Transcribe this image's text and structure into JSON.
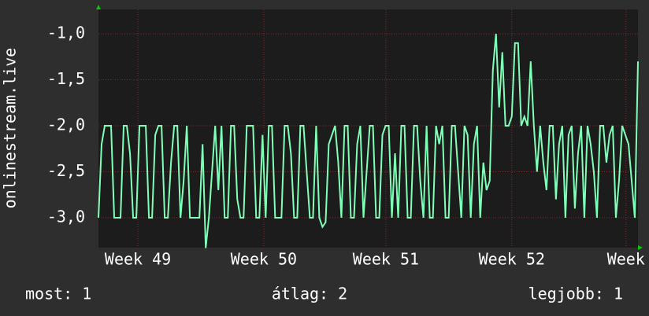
{
  "chart_data": {
    "type": "line",
    "ylabel": "onlinestream.live",
    "ylim": [
      -3.325,
      -0.735
    ],
    "yticks": [
      {
        "value": -1.0,
        "label": "-1,0"
      },
      {
        "value": -1.5,
        "label": "-1,5"
      },
      {
        "value": -2.0,
        "label": "-2,0"
      },
      {
        "value": -2.5,
        "label": "-2,5"
      },
      {
        "value": -3.0,
        "label": "-3,0"
      }
    ],
    "xlim": [
      0,
      171
    ],
    "xticks": [
      {
        "value": 12.5,
        "label": "Week 49"
      },
      {
        "value": 52.4,
        "label": "Week 50"
      },
      {
        "value": 91.1,
        "label": "Week 51"
      },
      {
        "value": 131,
        "label": "Week 52"
      },
      {
        "value": 167.2,
        "label": "Week"
      }
    ],
    "grid": true,
    "series": [
      {
        "color": "#80ffb8",
        "values": [
          -3,
          -2.2,
          -2,
          -2,
          -2,
          -3,
          -3,
          -3,
          -2,
          -2,
          -2.3,
          -3,
          -3,
          -2,
          -2,
          -2,
          -3,
          -3,
          -2.1,
          -2,
          -2,
          -3,
          -3,
          -2.4,
          -2,
          -2,
          -3,
          -2.6,
          -2,
          -3,
          -3,
          -3,
          -3,
          -2.2,
          -3.33,
          -3,
          -2.5,
          -2,
          -2.7,
          -2,
          -3,
          -3,
          -2,
          -2,
          -2.8,
          -3,
          -3,
          -2,
          -2,
          -2,
          -3,
          -3,
          -2.1,
          -3,
          -2,
          -2,
          -3,
          -3,
          -3,
          -2,
          -2,
          -2.3,
          -3,
          -3,
          -2,
          -2,
          -2.5,
          -3,
          -3,
          -2,
          -3,
          -3.1,
          -3.05,
          -2.2,
          -2.1,
          -2,
          -2.4,
          -3,
          -2,
          -2,
          -3,
          -3,
          -2.2,
          -2,
          -3,
          -2.5,
          -2,
          -2,
          -3,
          -3,
          -2.1,
          -2,
          -2,
          -3,
          -2.3,
          -3,
          -2,
          -2,
          -3,
          -3,
          -2,
          -2,
          -2.6,
          -3,
          -2,
          -3,
          -3,
          -2,
          -2.2,
          -2,
          -3,
          -3,
          -2,
          -2,
          -2.5,
          -3,
          -2,
          -2.1,
          -3,
          -2.2,
          -2,
          -3,
          -2.4,
          -2.7,
          -2.6,
          -1.4,
          -1.0,
          -1.8,
          -1.2,
          -2.0,
          -2.0,
          -1.9,
          -1.1,
          -1.1,
          -2.0,
          -1.9,
          -2.0,
          -1.3,
          -2.0,
          -2.5,
          -2,
          -2.4,
          -2.7,
          -2,
          -2,
          -2.8,
          -2.2,
          -2,
          -3,
          -2.1,
          -2,
          -2.9,
          -2.3,
          -2,
          -3,
          -2,
          -2.2,
          -2.5,
          -3,
          -2,
          -2,
          -2.4,
          -2.1,
          -2,
          -3,
          -2.6,
          -2,
          -2.1,
          -2.2,
          -2.6,
          -3,
          -1.3
        ]
      }
    ],
    "annotations": [
      "most: 1",
      "átlag: 2",
      "legjobb: 1"
    ]
  }
}
